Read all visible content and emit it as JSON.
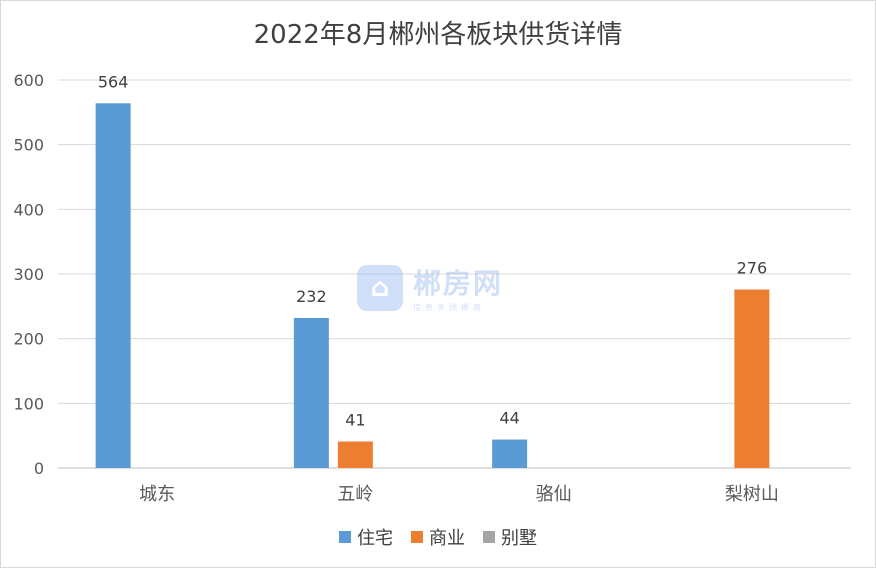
{
  "chart_data": {
    "type": "bar",
    "title": "2022年8月郴州各板块供货详情",
    "categories": [
      "城东",
      "五岭",
      "骆仙",
      "梨树山"
    ],
    "series": [
      {
        "name": "住宅",
        "color": "#5b9bd5",
        "values": [
          564,
          232,
          44,
          null
        ]
      },
      {
        "name": "商业",
        "color": "#ed7d31",
        "values": [
          null,
          41,
          null,
          276
        ]
      },
      {
        "name": "别墅",
        "color": "#a5a5a5",
        "values": [
          null,
          null,
          null,
          null
        ]
      }
    ],
    "ylim": [
      0,
      600
    ],
    "yticks": [
      0,
      100,
      200,
      300,
      400,
      500,
      600
    ],
    "grid": true,
    "legend_position": "bottom"
  },
  "watermark": {
    "name": "郴房网",
    "tagline": "信息多找郴房"
  }
}
